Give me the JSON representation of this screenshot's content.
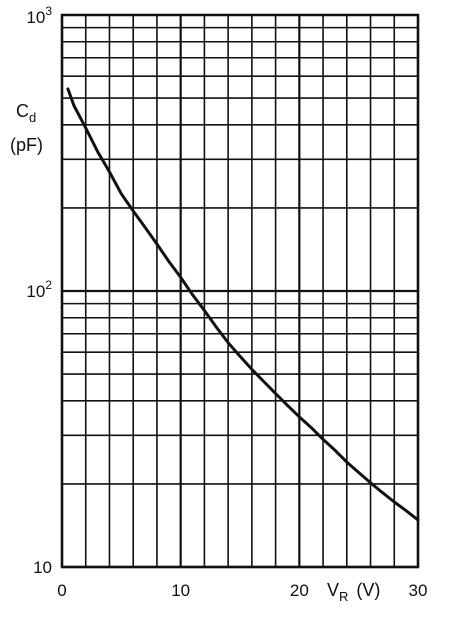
{
  "chart_data": {
    "type": "line",
    "title": "",
    "xlabel": "V",
    "xlabel_subscript": "R",
    "xlabel_unit": "(V)",
    "ylabel": "C",
    "ylabel_subscript": "d",
    "ylabel_unit": "(pF)",
    "xlim": [
      0,
      30
    ],
    "ylim": [
      10,
      1000
    ],
    "yscale": "log",
    "grid": true,
    "legend": "none",
    "x_tick_labels": [
      "0",
      "10",
      "20",
      "30"
    ],
    "x_tick_values": [
      0,
      10,
      20,
      30
    ],
    "y_tick_labels": [
      {
        "base": "10",
        "exp": "3",
        "value": 1000
      },
      {
        "base": "10",
        "exp": "2",
        "value": 100
      },
      {
        "base": "10",
        "exp": "",
        "value": 10
      }
    ],
    "series": [
      {
        "x": [
          0.5,
          1,
          2,
          3,
          4,
          5,
          6,
          7,
          8,
          9,
          10,
          11,
          12,
          13,
          14,
          15,
          16,
          17,
          18,
          19,
          20,
          21,
          22,
          23,
          24,
          25,
          26,
          27,
          28,
          29,
          30
        ],
        "y": [
          540,
          470,
          390,
          320,
          270,
          225,
          195,
          170,
          148,
          128,
          112,
          97,
          85,
          74,
          65,
          58,
          52,
          47,
          42.5,
          38.5,
          35,
          32,
          29,
          26.5,
          24,
          22,
          20.2,
          18.6,
          17.2,
          16.0,
          14.8
        ]
      }
    ],
    "colors": {
      "line": "#111111",
      "grid": "#111111",
      "background": "#ffffff"
    }
  }
}
